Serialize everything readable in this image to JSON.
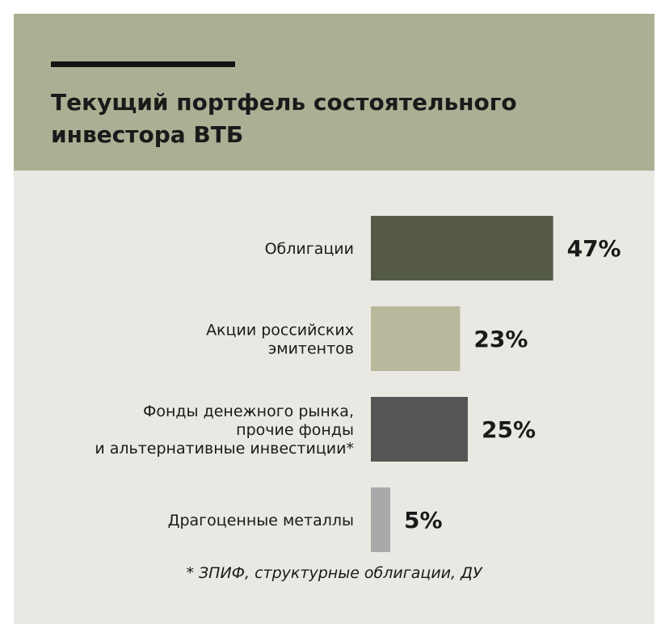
{
  "chart_data": {
    "type": "bar",
    "orientation": "horizontal",
    "title": "Текущий портфель состоятельного\nинвестора ВТБ",
    "categories": [
      "Облигации",
      "Акции российских\nэмитентов",
      "Фонды денежного рынка,\nпрочие фонды\nи альтернативные инвестиции*",
      "Драгоценные металлы"
    ],
    "values": [
      47,
      23,
      25,
      5
    ],
    "value_labels": [
      "47%",
      "23%",
      "25%",
      "5%"
    ],
    "unit": "%",
    "bar_colors": [
      "#545948",
      "#b9b89c",
      "#555555",
      "#a9a9a9"
    ],
    "grid": false,
    "legend": "none"
  },
  "footnote": "* ЗПИФ, структурные облигации, ДУ",
  "colors": {
    "header_bg": "#adaf94",
    "card_bg": "#e9e8e2",
    "text": "#1a1a1a"
  }
}
